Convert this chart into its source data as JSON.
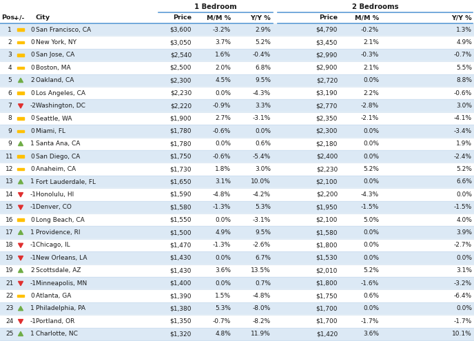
{
  "rows": [
    {
      "pos": "1",
      "arrow": "flat",
      "change": "0",
      "city": "San Francisco, CA",
      "p1": "$3,600",
      "mm1": "-3.2%",
      "yy1": "2.9%",
      "p2": "$4,790",
      "mm2": "-0.2%",
      "yy2": "1.3%"
    },
    {
      "pos": "2",
      "arrow": "flat",
      "change": "0",
      "city": "New York, NY",
      "p1": "$3,050",
      "mm1": "3.7%",
      "yy1": "5.2%",
      "p2": "$3,450",
      "mm2": "2.1%",
      "yy2": "4.9%"
    },
    {
      "pos": "3",
      "arrow": "flat",
      "change": "0",
      "city": "San Jose, CA",
      "p1": "$2,540",
      "mm1": "1.6%",
      "yy1": "-0.4%",
      "p2": "$2,990",
      "mm2": "-0.3%",
      "yy2": "-0.7%"
    },
    {
      "pos": "4",
      "arrow": "flat",
      "change": "0",
      "city": "Boston, MA",
      "p1": "$2,500",
      "mm1": "2.0%",
      "yy1": "6.8%",
      "p2": "$2,900",
      "mm2": "2.1%",
      "yy2": "5.5%"
    },
    {
      "pos": "5",
      "arrow": "up",
      "change": "2",
      "city": "Oakland, CA",
      "p1": "$2,300",
      "mm1": "4.5%",
      "yy1": "9.5%",
      "p2": "$2,720",
      "mm2": "0.0%",
      "yy2": "8.8%"
    },
    {
      "pos": "6",
      "arrow": "flat",
      "change": "0",
      "city": "Los Angeles, CA",
      "p1": "$2,230",
      "mm1": "0.0%",
      "yy1": "-4.3%",
      "p2": "$3,190",
      "mm2": "2.2%",
      "yy2": "-0.6%"
    },
    {
      "pos": "7",
      "arrow": "down",
      "change": "-2",
      "city": "Washington, DC",
      "p1": "$2,220",
      "mm1": "-0.9%",
      "yy1": "3.3%",
      "p2": "$2,770",
      "mm2": "-2.8%",
      "yy2": "3.0%"
    },
    {
      "pos": "8",
      "arrow": "flat",
      "change": "0",
      "city": "Seattle, WA",
      "p1": "$1,900",
      "mm1": "2.7%",
      "yy1": "-3.1%",
      "p2": "$2,350",
      "mm2": "-2.1%",
      "yy2": "-4.1%"
    },
    {
      "pos": "9",
      "arrow": "flat",
      "change": "0",
      "city": "Miami, FL",
      "p1": "$1,780",
      "mm1": "-0.6%",
      "yy1": "0.0%",
      "p2": "$2,300",
      "mm2": "0.0%",
      "yy2": "-3.4%"
    },
    {
      "pos": "9",
      "arrow": "up",
      "change": "1",
      "city": "Santa Ana, CA",
      "p1": "$1,780",
      "mm1": "0.0%",
      "yy1": "0.6%",
      "p2": "$2,180",
      "mm2": "0.0%",
      "yy2": "1.9%"
    },
    {
      "pos": "11",
      "arrow": "flat",
      "change": "0",
      "city": "San Diego, CA",
      "p1": "$1,750",
      "mm1": "-0.6%",
      "yy1": "-5.4%",
      "p2": "$2,400",
      "mm2": "0.0%",
      "yy2": "-2.4%"
    },
    {
      "pos": "12",
      "arrow": "flat",
      "change": "0",
      "city": "Anaheim, CA",
      "p1": "$1,730",
      "mm1": "1.8%",
      "yy1": "3.0%",
      "p2": "$2,230",
      "mm2": "5.2%",
      "yy2": "5.2%"
    },
    {
      "pos": "13",
      "arrow": "up",
      "change": "1",
      "city": "Fort Lauderdale, FL",
      "p1": "$1,650",
      "mm1": "3.1%",
      "yy1": "10.0%",
      "p2": "$2,100",
      "mm2": "0.0%",
      "yy2": "6.6%"
    },
    {
      "pos": "14",
      "arrow": "down",
      "change": "-1",
      "city": "Honolulu, HI",
      "p1": "$1,590",
      "mm1": "-4.8%",
      "yy1": "-4.2%",
      "p2": "$2,200",
      "mm2": "-4.3%",
      "yy2": "0.0%"
    },
    {
      "pos": "15",
      "arrow": "down",
      "change": "-1",
      "city": "Denver, CO",
      "p1": "$1,580",
      "mm1": "-1.3%",
      "yy1": "5.3%",
      "p2": "$1,950",
      "mm2": "-1.5%",
      "yy2": "-1.5%"
    },
    {
      "pos": "16",
      "arrow": "flat",
      "change": "0",
      "city": "Long Beach, CA",
      "p1": "$1,550",
      "mm1": "0.0%",
      "yy1": "-3.1%",
      "p2": "$2,100",
      "mm2": "5.0%",
      "yy2": "4.0%"
    },
    {
      "pos": "17",
      "arrow": "up",
      "change": "1",
      "city": "Providence, RI",
      "p1": "$1,500",
      "mm1": "4.9%",
      "yy1": "9.5%",
      "p2": "$1,580",
      "mm2": "0.0%",
      "yy2": "3.9%"
    },
    {
      "pos": "18",
      "arrow": "down",
      "change": "-1",
      "city": "Chicago, IL",
      "p1": "$1,470",
      "mm1": "-1.3%",
      "yy1": "-2.6%",
      "p2": "$1,800",
      "mm2": "0.0%",
      "yy2": "-2.7%"
    },
    {
      "pos": "19",
      "arrow": "down",
      "change": "-1",
      "city": "New Orleans, LA",
      "p1": "$1,430",
      "mm1": "0.0%",
      "yy1": "6.7%",
      "p2": "$1,530",
      "mm2": "0.0%",
      "yy2": "0.0%"
    },
    {
      "pos": "19",
      "arrow": "up",
      "change": "2",
      "city": "Scottsdale, AZ",
      "p1": "$1,430",
      "mm1": "3.6%",
      "yy1": "13.5%",
      "p2": "$2,010",
      "mm2": "5.2%",
      "yy2": "3.1%"
    },
    {
      "pos": "21",
      "arrow": "down",
      "change": "-1",
      "city": "Minneapolis, MN",
      "p1": "$1,400",
      "mm1": "0.0%",
      "yy1": "0.7%",
      "p2": "$1,800",
      "mm2": "-1.6%",
      "yy2": "-3.2%"
    },
    {
      "pos": "22",
      "arrow": "flat",
      "change": "0",
      "city": "Atlanta, GA",
      "p1": "$1,390",
      "mm1": "1.5%",
      "yy1": "-4.8%",
      "p2": "$1,750",
      "mm2": "0.6%",
      "yy2": "-6.4%"
    },
    {
      "pos": "23",
      "arrow": "up",
      "change": "1",
      "city": "Philadelphia, PA",
      "p1": "$1,380",
      "mm1": "5.3%",
      "yy1": "-8.0%",
      "p2": "$1,700",
      "mm2": "0.0%",
      "yy2": "0.0%"
    },
    {
      "pos": "24",
      "arrow": "down",
      "change": "-1",
      "city": "Portland, OR",
      "p1": "$1,350",
      "mm1": "-0.7%",
      "yy1": "-8.2%",
      "p2": "$1,700",
      "mm2": "-1.7%",
      "yy2": "-1.7%"
    },
    {
      "pos": "25",
      "arrow": "up",
      "change": "1",
      "city": "Charlotte, NC",
      "p1": "$1,320",
      "mm1": "4.8%",
      "yy1": "11.9%",
      "p2": "$1,420",
      "mm2": "3.6%",
      "yy2": "10.1%"
    }
  ],
  "col_header_1bed": "1 Bedroom",
  "col_header_2bed": "2 Bedrooms",
  "bg_color": "#ffffff",
  "row_alt_color": "#dce9f5",
  "row_normal_color": "#ffffff",
  "header_line_color": "#5b9bd5",
  "border_color": "#c5d9ed",
  "arrow_up_color": "#70ad47",
  "arrow_down_color": "#e03030",
  "arrow_flat_color": "#ffc000",
  "header_font_size": 6.8,
  "row_font_size": 6.5
}
